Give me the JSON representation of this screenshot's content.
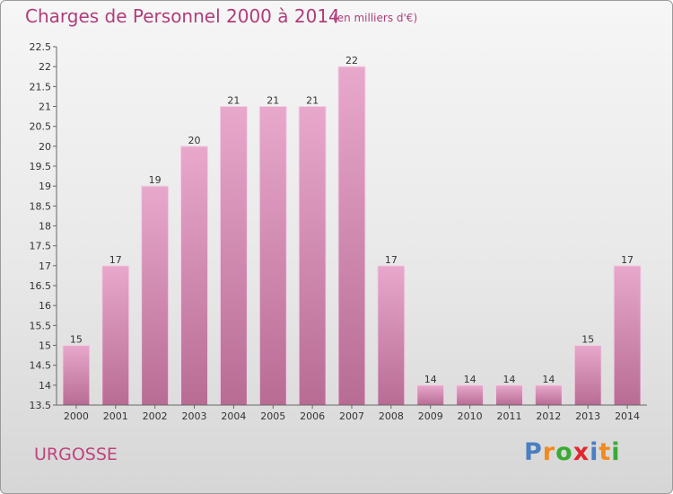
{
  "chart_data": {
    "type": "bar",
    "title": "Charges de Personnel 2000 à 2014",
    "subtitle": "(en milliers d'€)",
    "categories": [
      "2000",
      "2001",
      "2002",
      "2003",
      "2004",
      "2005",
      "2006",
      "2007",
      "2008",
      "2009",
      "2010",
      "2011",
      "2012",
      "2013",
      "2014"
    ],
    "values": [
      15,
      17,
      19,
      20,
      21,
      21,
      21,
      22,
      17,
      14,
      14,
      14,
      14,
      15,
      17
    ],
    "ylim": [
      13.5,
      22.5
    ],
    "yticks": [
      "13.5",
      "14",
      "14.5",
      "15",
      "15.5",
      "16",
      "16.5",
      "17",
      "17.5",
      "18",
      "18.5",
      "19",
      "19.5",
      "20",
      "20.5",
      "21",
      "21.5",
      "22",
      "22.5"
    ],
    "xlabel": "",
    "ylabel": "",
    "grid": false,
    "bar_color_top": "#e8a8cc",
    "bar_color_bottom": "#b86c94"
  },
  "commune": "URGOSSE",
  "logo": {
    "letters": [
      "P",
      "r",
      "o",
      "x",
      "i",
      "t",
      "i"
    ],
    "colors": [
      "#4a7fc1",
      "#f28a1c",
      "#3aaa35",
      "#e0262d",
      "#4a7fc1",
      "#f28a1c",
      "#3aaa35"
    ]
  }
}
